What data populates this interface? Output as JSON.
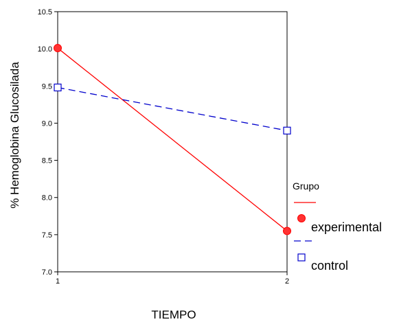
{
  "chart_data": {
    "type": "line",
    "x": [
      1,
      2
    ],
    "xlabel": "TIEMPO",
    "ylabel": "% Hemoglobina Glucosilada",
    "ylim": [
      7.0,
      10.5
    ],
    "xlim": [
      1,
      2
    ],
    "yticks": [
      "7.0",
      "7.5",
      "8.0",
      "8.5",
      "9.0",
      "9.5",
      "10.0",
      "10.5"
    ],
    "xticks": [
      "1",
      "2"
    ],
    "grid": false,
    "legend_position": "right",
    "legend_title": "Grupo",
    "series": [
      {
        "name": "experimental",
        "values": [
          10.01,
          7.55
        ],
        "color": "#ff0000",
        "line_style": "solid",
        "marker": "filled-circle",
        "marker_color": "#ff3333"
      },
      {
        "name": "control",
        "values": [
          9.48,
          8.9
        ],
        "color": "#0000cc",
        "line_style": "dashed",
        "marker": "open-square",
        "marker_color": "#0000cc"
      }
    ]
  }
}
